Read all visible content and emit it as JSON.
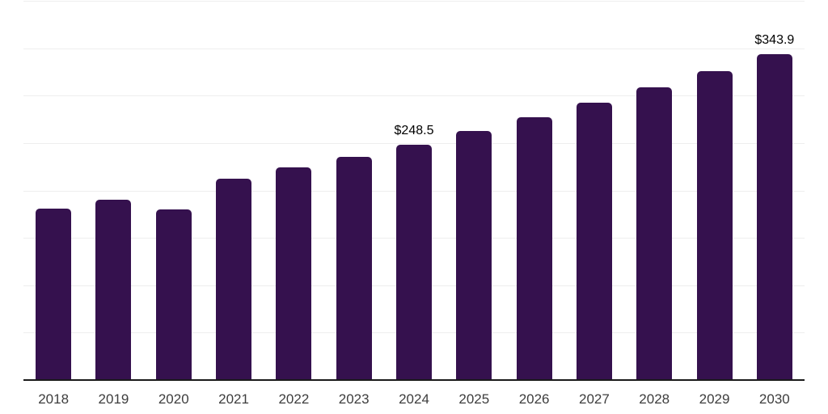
{
  "chart_data": {
    "type": "bar",
    "title": "",
    "xlabel": "",
    "ylabel": "",
    "categories": [
      "2018",
      "2019",
      "2020",
      "2021",
      "2022",
      "2023",
      "2024",
      "2025",
      "2026",
      "2027",
      "2028",
      "2029",
      "2030"
    ],
    "values": [
      180.6,
      190.4,
      179.9,
      212.6,
      223.9,
      235.4,
      248.5,
      262.3,
      276.9,
      292.3,
      308.5,
      325.7,
      343.9
    ],
    "value_labels": [
      "",
      "",
      "",
      "",
      "",
      "",
      "$248.5",
      "",
      "",
      "",
      "",
      "",
      "$343.9"
    ],
    "ylim": [
      0,
      400
    ],
    "grid_step": 50,
    "grid": "horizontal",
    "legend_position": "none",
    "colors": {
      "bar": "#35114e",
      "axis": "#1a1a1a",
      "gridline": "#eeeeee",
      "value_label": "#000000",
      "tick_label": "#3d3d3d"
    }
  }
}
